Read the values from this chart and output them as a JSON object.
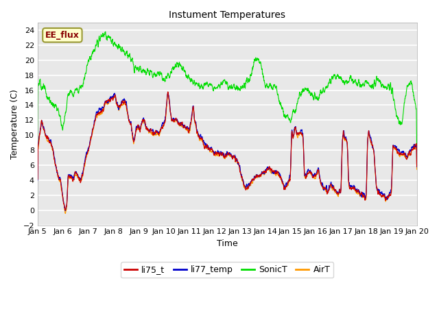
{
  "title": "Instument Temperatures",
  "xlabel": "Time",
  "ylabel": "Temperature (C)",
  "ylim": [
    -2,
    25
  ],
  "yticks": [
    -2,
    0,
    2,
    4,
    6,
    8,
    10,
    12,
    14,
    16,
    18,
    20,
    22,
    24
  ],
  "colors": {
    "li75_t": "#cc0000",
    "li77_temp": "#0000cc",
    "SonicT": "#00dd00",
    "AirT": "#ff9900"
  },
  "fig_facecolor": "#ffffff",
  "ax_facecolor": "#e8e8e8",
  "grid_color": "#ffffff",
  "annotation": {
    "text": "EE_flux",
    "facecolor": "#ffffcc",
    "edgecolor": "#999933",
    "textcolor": "#880000"
  },
  "xtick_labels": [
    "Jan 5",
    "Jan 6",
    "Jan 7",
    "Jan 8",
    "Jan 9",
    "Jan 10",
    "Jan 11",
    "Jan 12",
    "Jan 13",
    "Jan 14",
    "Jan 15",
    "Jan 16",
    "Jan 17",
    "Jan 18",
    "Jan 19",
    "Jan 20"
  ],
  "linewidth": 0.8,
  "title_fontsize": 10,
  "axis_fontsize": 9,
  "tick_fontsize": 8
}
